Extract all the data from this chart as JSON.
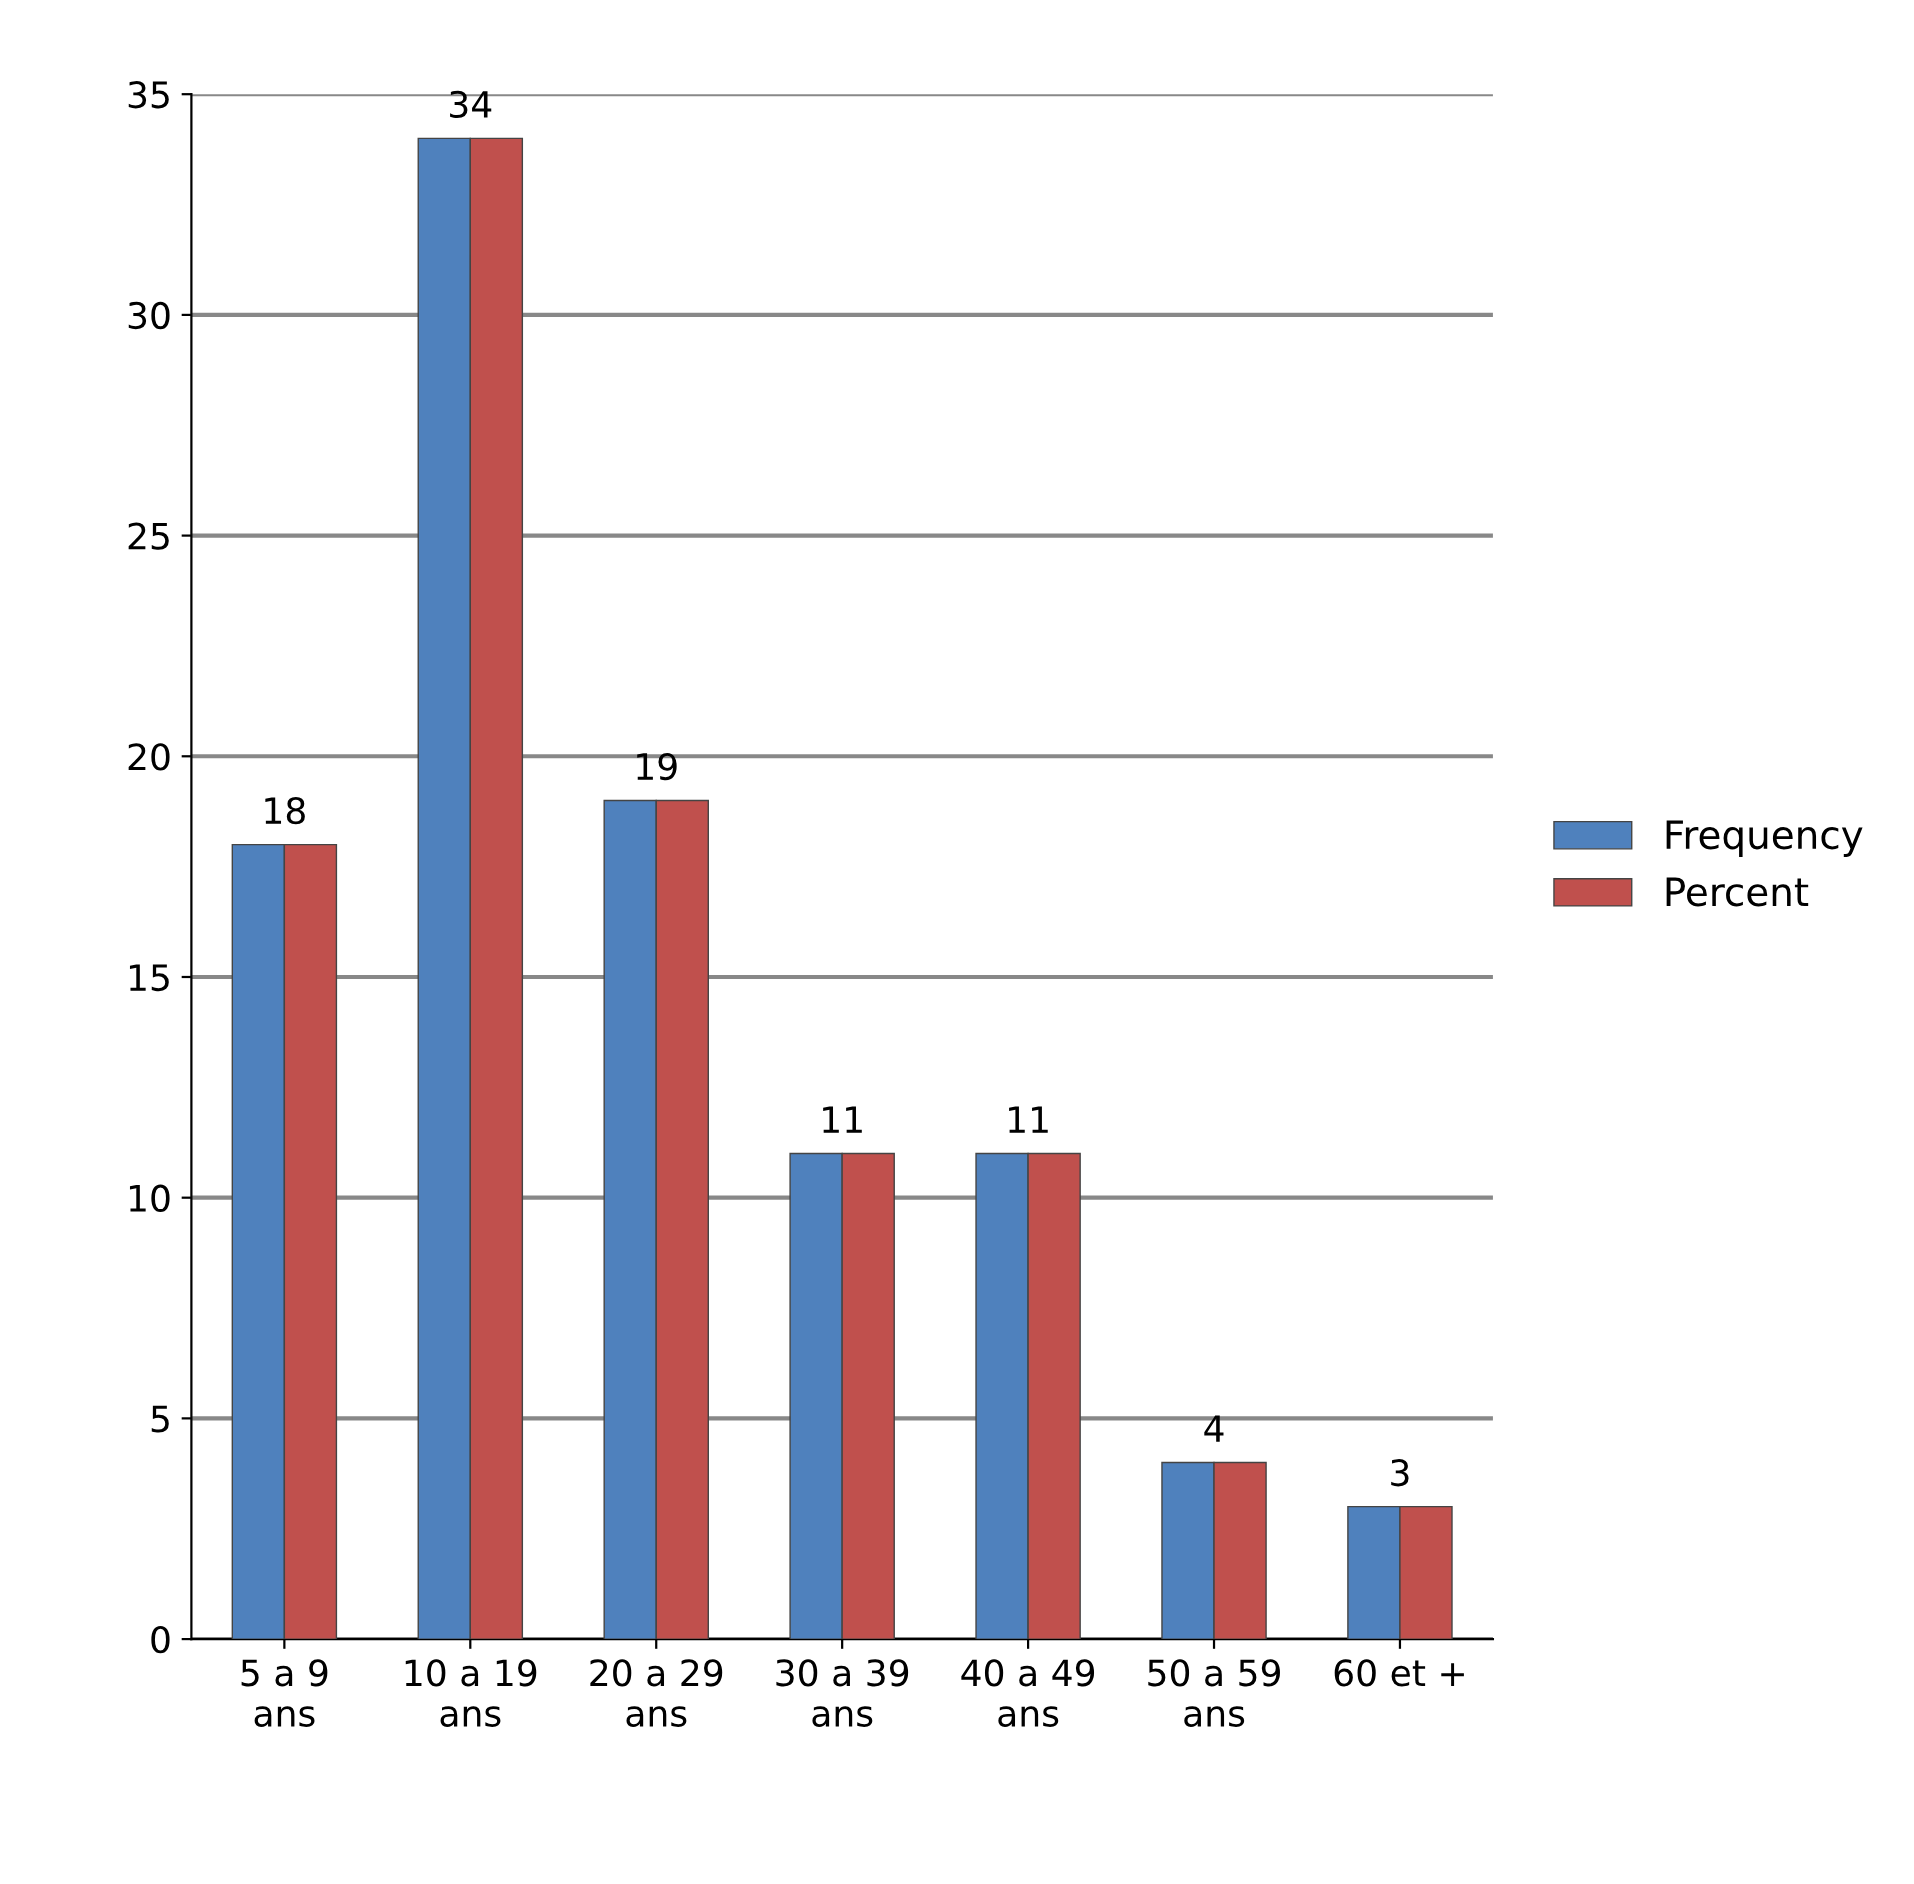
{
  "chart_data": {
    "type": "bar",
    "categories": [
      "5 a 9\nans",
      "10 a 19\nans",
      "20 a 29\nans",
      "30 a 39\nans",
      "40 a 49\nans",
      "50 a 59\nans",
      "60 et +"
    ],
    "series": [
      {
        "name": "Frequency",
        "color": "#4f81bd",
        "values": [
          18,
          34,
          19,
          11,
          11,
          4,
          3
        ]
      },
      {
        "name": "Percent",
        "color": "#c0504d",
        "values": [
          18,
          34,
          19,
          11,
          11,
          4,
          3
        ],
        "value_labels": [
          "18",
          "34",
          "19",
          "11",
          "11",
          "4",
          "3"
        ]
      }
    ],
    "ylim": [
      0,
      35
    ],
    "yticks": [
      0,
      5,
      10,
      15,
      20,
      25,
      30,
      35
    ],
    "grid": "y",
    "legend": "right"
  }
}
